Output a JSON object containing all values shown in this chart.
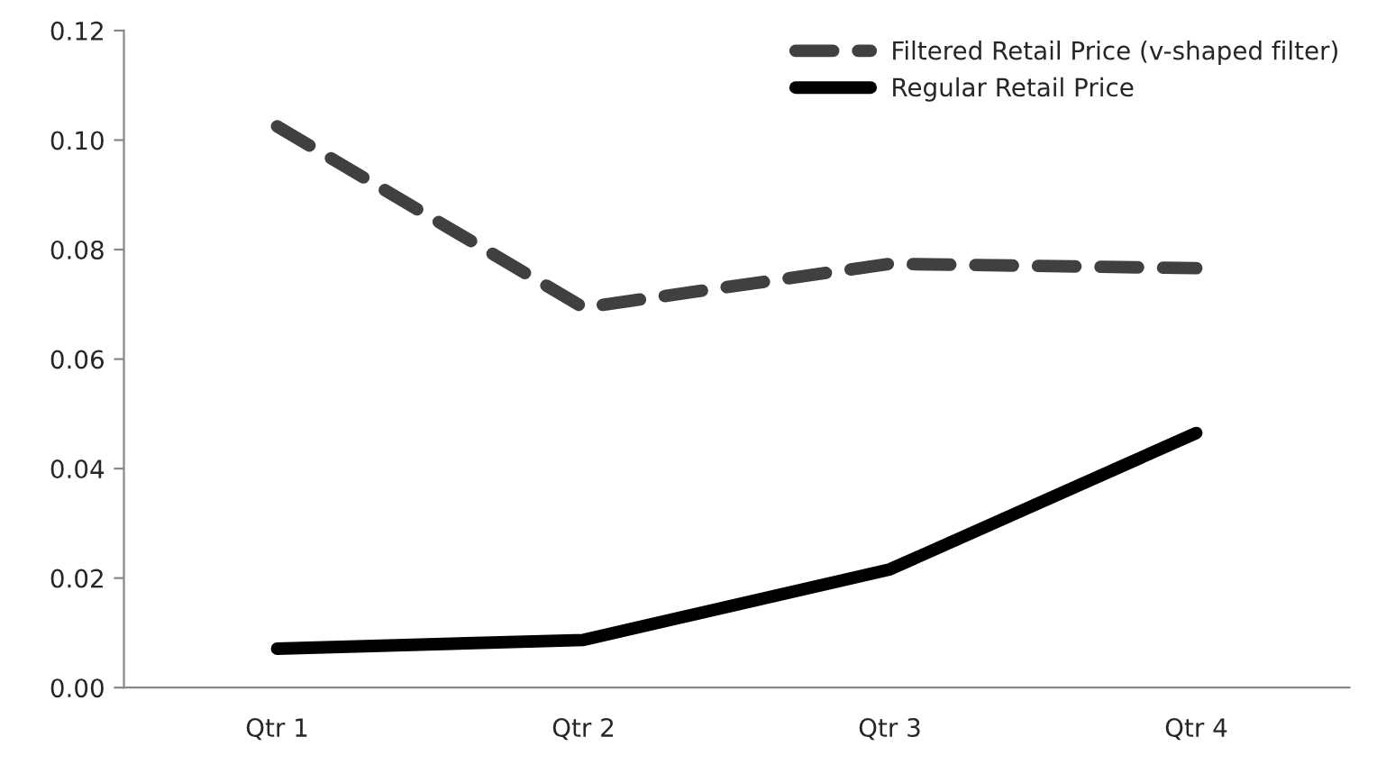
{
  "chart_data": {
    "type": "line",
    "categories": [
      "Qtr 1",
      "Qtr 2",
      "Qtr 3",
      "Qtr 4"
    ],
    "series": [
      {
        "name": "Filtered Retail Price (v-shaped filter)",
        "color": "#404040",
        "line_style": "dashed",
        "values": [
          0.1025,
          0.0694,
          0.0774,
          0.0766
        ]
      },
      {
        "name": "Regular Retail Price",
        "color": "#000000",
        "line_style": "solid",
        "values": [
          0.0071,
          0.0087,
          0.0216,
          0.0465
        ]
      }
    ],
    "ylim": [
      0,
      0.12
    ],
    "yticks": [
      {
        "value": 0,
        "label": "0.00"
      },
      {
        "value": 0.02,
        "label": "0.02"
      },
      {
        "value": 0.04,
        "label": "0.04"
      },
      {
        "value": 0.06,
        "label": "0.06"
      },
      {
        "value": 0.08,
        "label": "0.08"
      },
      {
        "value": 0.1,
        "label": "0.10"
      },
      {
        "value": 0.12,
        "label": "0.12"
      }
    ],
    "grid": false,
    "legend": "top right",
    "marker": "none"
  }
}
